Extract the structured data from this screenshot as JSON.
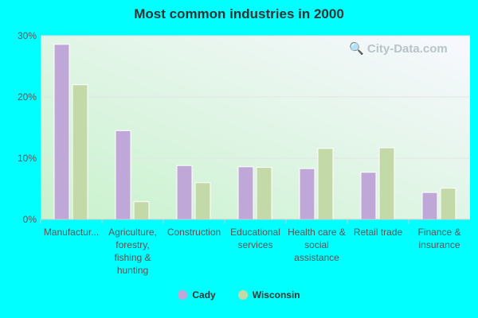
{
  "chart_data": {
    "type": "bar",
    "title": "Most common industries in 2000",
    "categories": [
      "Manufactur...",
      "Agriculture, forestry, fishing & hunting",
      "Construction",
      "Educational services",
      "Health care & social assistance",
      "Retail trade",
      "Finance & insurance"
    ],
    "series": [
      {
        "name": "Cady",
        "color": "#bfa8d8",
        "values": [
          28.6,
          14.5,
          8.8,
          8.6,
          8.3,
          7.7,
          4.4
        ]
      },
      {
        "name": "Wisconsin",
        "color": "#c4d9a8",
        "values": [
          22.0,
          2.9,
          6.0,
          8.5,
          11.6,
          11.7,
          5.1
        ]
      }
    ],
    "yticks": [
      "0%",
      "10%",
      "20%",
      "30%"
    ],
    "ylim": [
      0,
      30
    ],
    "grid": true,
    "legend": "bottom",
    "watermark": "City-Data.com"
  }
}
